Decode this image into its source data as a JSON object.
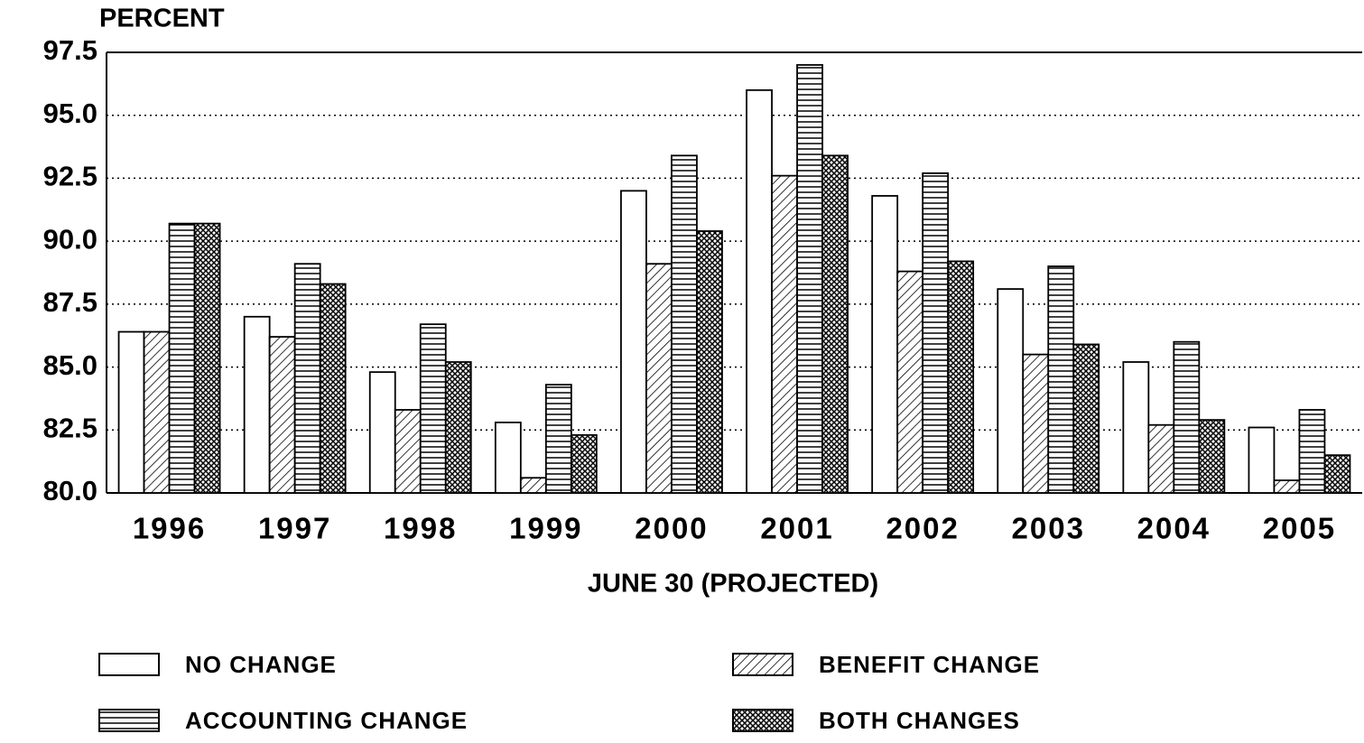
{
  "chart_data": {
    "type": "bar",
    "y_axis_label": "PERCENT",
    "x_axis_label": "JUNE 30 (PROJECTED)",
    "categories": [
      "1996",
      "1997",
      "1998",
      "1999",
      "2000",
      "2001",
      "2002",
      "2003",
      "2004",
      "2005"
    ],
    "series": [
      {
        "name": "NO CHANGE",
        "color": "#000000",
        "pattern": "none",
        "values": [
          86.4,
          87.0,
          84.8,
          82.8,
          92.0,
          96.0,
          91.8,
          88.1,
          85.2,
          82.6
        ]
      },
      {
        "name": "BENEFIT CHANGE",
        "color": "#000000",
        "pattern": "diagonal",
        "values": [
          86.4,
          86.2,
          83.3,
          80.6,
          89.1,
          92.6,
          88.8,
          85.5,
          82.7,
          80.5
        ]
      },
      {
        "name": "ACCOUNTING CHANGE",
        "color": "#000000",
        "pattern": "horizontal",
        "values": [
          90.7,
          89.1,
          86.7,
          84.3,
          93.4,
          97.0,
          92.7,
          89.0,
          86.0,
          83.3
        ]
      },
      {
        "name": "BOTH CHANGES",
        "color": "#000000",
        "pattern": "crosshatch",
        "values": [
          90.7,
          88.3,
          85.2,
          82.3,
          90.4,
          93.4,
          89.2,
          85.9,
          82.9,
          81.5
        ]
      }
    ],
    "ylim": [
      80,
      97.5
    ],
    "yticks": [
      {
        "value": 80,
        "label": "80.0"
      },
      82.5,
      {
        "value": 85,
        "label": "85.0"
      },
      87.5,
      {
        "value": 90,
        "label": "90.0"
      },
      92.5,
      {
        "value": 95,
        "label": "95.0"
      },
      97.5
    ],
    "grid": true
  }
}
